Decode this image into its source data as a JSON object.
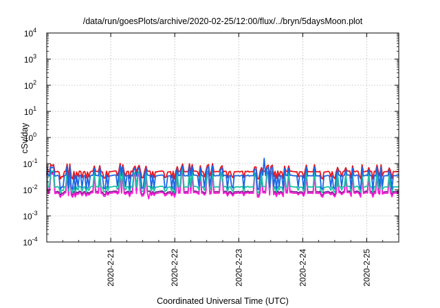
{
  "chart_data": {
    "type": "line",
    "title": "/data/run/goesPlots/archive/2020-02-25/12:00/flux/../bryn/5daysMoon.plot",
    "xlabel": "Coordinated Universal Time (UTC)",
    "ylabel": "cSv/day",
    "yscale": "log",
    "ylim": [
      0.0001,
      10000
    ],
    "xlim": [
      0,
      5.5
    ],
    "y_tick_values": [
      0.0001,
      0.001,
      0.01,
      0.1,
      1,
      10,
      100,
      1000,
      10000
    ],
    "y_tick_labels": [
      {
        "base": "10",
        "exp": "-4"
      },
      {
        "base": "10",
        "exp": "-3"
      },
      {
        "base": "10",
        "exp": "-2"
      },
      {
        "base": "10",
        "exp": "-1"
      },
      {
        "base": "10",
        "exp": "0"
      },
      {
        "base": "10",
        "exp": "1"
      },
      {
        "base": "10",
        "exp": "2"
      },
      {
        "base": "10",
        "exp": "3"
      },
      {
        "base": "10",
        "exp": "4"
      }
    ],
    "x_tick_values": [
      1,
      2,
      3,
      4,
      5
    ],
    "x_tick_labels": [
      "2020-2-21",
      "2020-2-22",
      "2020-2-23",
      "2020-2-24",
      "2020-2-25"
    ],
    "grid": true,
    "series_colors": [
      "#e8141c",
      "#1a66e6",
      "#19c2a4",
      "#7a1e8c",
      "#ff19d9"
    ],
    "series_base_values": [
      0.05,
      0.035,
      0.013,
      0.0085,
      0.0075
    ],
    "series_dip_values": [
      0.03,
      0.012,
      0.009,
      0.007,
      0.006
    ],
    "series_spike_values": [
      0.085,
      0.07,
      0.05,
      0.045,
      0.04
    ]
  }
}
